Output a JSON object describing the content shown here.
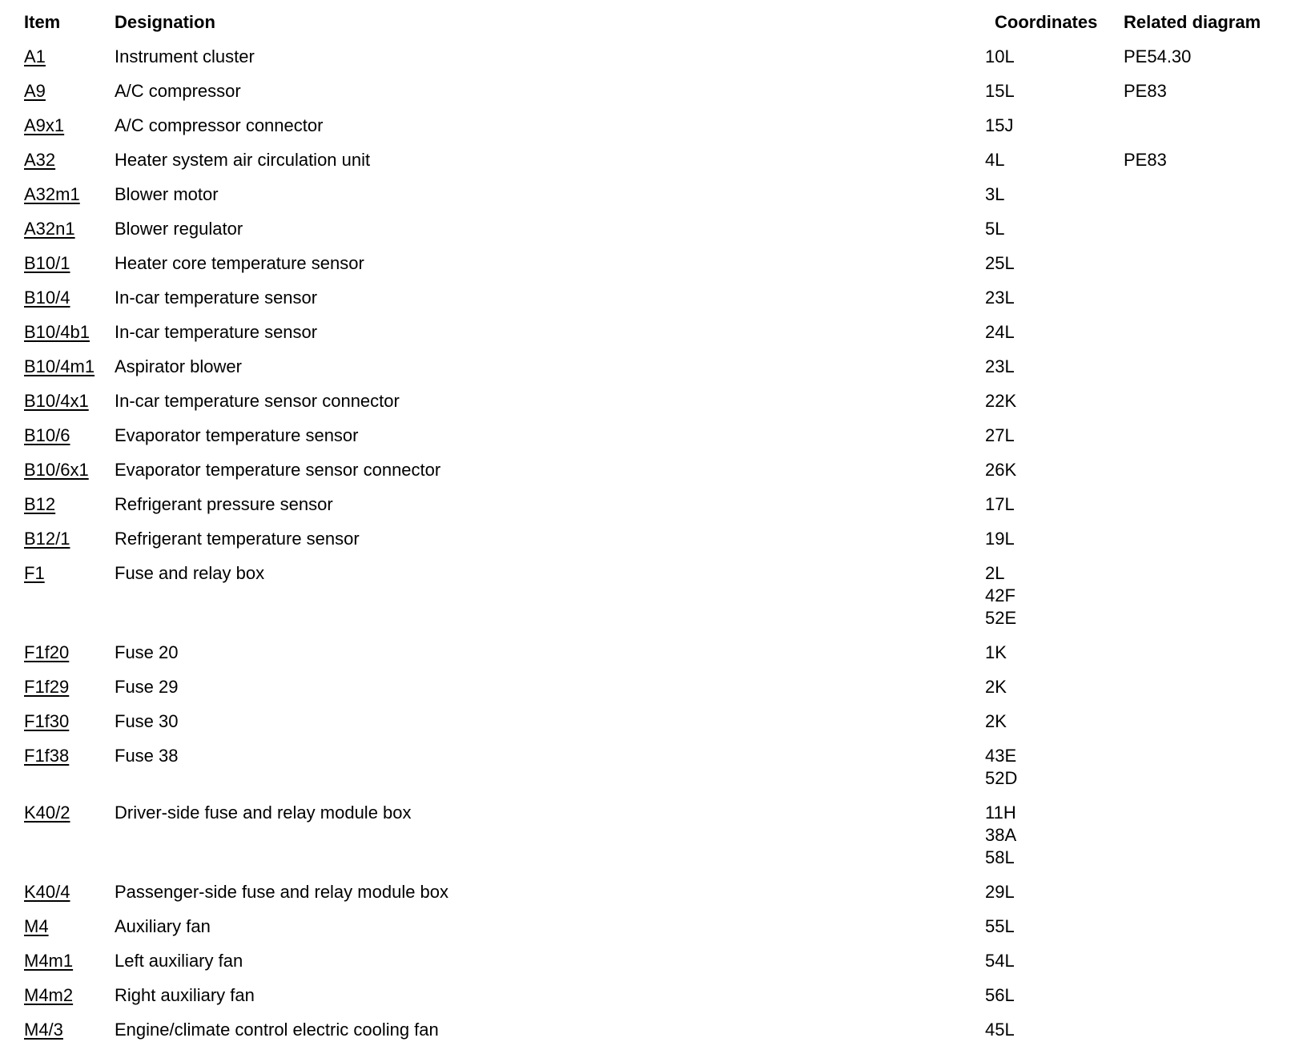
{
  "colors": {
    "background": "#ffffff",
    "text": "#000000"
  },
  "table": {
    "headers": {
      "item": "Item",
      "designation": "Designation",
      "coordinates": "Coordinates",
      "related_diagram": "Related diagram"
    },
    "rows": [
      {
        "item": "A1",
        "designation": "Instrument cluster",
        "coordinates": [
          "10L"
        ],
        "related_diagram": "PE54.30"
      },
      {
        "item": "A9",
        "designation": "A/C compressor",
        "coordinates": [
          "15L"
        ],
        "related_diagram": "PE83"
      },
      {
        "item": "A9x1",
        "designation": "A/C compressor connector",
        "coordinates": [
          "15J"
        ]
      },
      {
        "item": "A32",
        "designation": "Heater system air circulation unit",
        "coordinates": [
          "4L"
        ],
        "related_diagram": "PE83"
      },
      {
        "item": "A32m1",
        "designation": "Blower motor",
        "coordinates": [
          "3L"
        ]
      },
      {
        "item": "A32n1",
        "designation": "Blower regulator",
        "coordinates": [
          "5L"
        ]
      },
      {
        "item": "B10/1",
        "designation": "Heater core temperature sensor",
        "coordinates": [
          "25L"
        ]
      },
      {
        "item": "B10/4",
        "designation": "In-car temperature sensor",
        "coordinates": [
          "23L"
        ]
      },
      {
        "item": "B10/4b1",
        "designation": "In-car temperature sensor",
        "coordinates": [
          "24L"
        ]
      },
      {
        "item": "B10/4m1",
        "designation": "Aspirator blower",
        "coordinates": [
          "23L"
        ]
      },
      {
        "item": "B10/4x1",
        "designation": "In-car temperature sensor connector",
        "coordinates": [
          "22K"
        ]
      },
      {
        "item": "B10/6",
        "designation": "Evaporator temperature sensor",
        "coordinates": [
          "27L"
        ]
      },
      {
        "item": "B10/6x1",
        "designation": "Evaporator temperature sensor connector",
        "coordinates": [
          "26K"
        ]
      },
      {
        "item": "B12",
        "designation": "Refrigerant pressure sensor",
        "coordinates": [
          "17L"
        ]
      },
      {
        "item": "B12/1",
        "designation": "Refrigerant temperature sensor",
        "coordinates": [
          "19L"
        ]
      },
      {
        "item": "F1",
        "designation": "Fuse and relay box",
        "coordinates": [
          "2L",
          "42F",
          "52E"
        ]
      },
      {
        "item": "F1f20",
        "designation": "Fuse 20",
        "coordinates": [
          "1K"
        ]
      },
      {
        "item": "F1f29",
        "designation": "Fuse 29",
        "coordinates": [
          "2K"
        ]
      },
      {
        "item": "F1f30",
        "designation": "Fuse 30",
        "coordinates": [
          "2K"
        ]
      },
      {
        "item": "F1f38",
        "designation": "Fuse 38",
        "coordinates": [
          "43E",
          "52D"
        ]
      },
      {
        "item": "K40/2",
        "designation": "Driver-side fuse and relay module box",
        "coordinates": [
          "11H",
          "38A",
          "58L"
        ]
      },
      {
        "item": "K40/4",
        "designation": "Passenger-side fuse and relay module box",
        "coordinates": [
          "29L"
        ]
      },
      {
        "item": "M4",
        "designation": "Auxiliary fan",
        "coordinates": [
          "55L"
        ]
      },
      {
        "item": "M4m1",
        "designation": "Left auxiliary fan",
        "coordinates": [
          "54L"
        ]
      },
      {
        "item": "M4m2",
        "designation": "Right auxiliary fan",
        "coordinates": [
          "56L"
        ]
      },
      {
        "item": "M4/3",
        "designation": "Engine/climate control electric cooling fan",
        "coordinates": [
          "45L"
        ]
      }
    ]
  }
}
